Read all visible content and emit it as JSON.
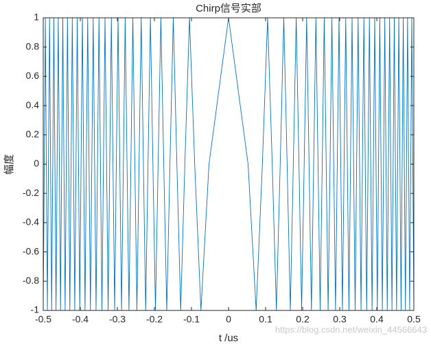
{
  "chart_data": {
    "type": "line",
    "title": "Chirp信号实部",
    "xlabel": "t /us",
    "ylabel": "幅度",
    "watermark": "https://blog.csdn.net/weixin_44566643",
    "color": "#0072bd",
    "xlim": [
      -0.5,
      0.5
    ],
    "xticks": [
      -0.5,
      -0.4,
      -0.3,
      -0.2,
      -0.1,
      0,
      0.1,
      0.2,
      0.3,
      0.4,
      0.5
    ],
    "ylim": [
      -1,
      1
    ],
    "yticks": [
      -1,
      -0.8,
      -0.6,
      -0.4,
      -0.2,
      0,
      0.2,
      0.4,
      0.6,
      0.8,
      1
    ],
    "x": [
      -0.5,
      -0.4972,
      -0.4944,
      -0.4916,
      -0.4888,
      -0.4859,
      -0.483,
      -0.4802,
      -0.4773,
      -0.4743,
      -0.4714,
      -0.4685,
      -0.4655,
      -0.4625,
      -0.4595,
      -0.4564,
      -0.4534,
      -0.4503,
      -0.4472,
      -0.4441,
      -0.441,
      -0.4378,
      -0.4346,
      -0.4314,
      -0.4282,
      -0.4249,
      -0.4216,
      -0.4183,
      -0.415,
      -0.4116,
      -0.4082,
      -0.4048,
      -0.4014,
      -0.3979,
      -0.3944,
      -0.3909,
      -0.3873,
      -0.3837,
      -0.3801,
      -0.3764,
      -0.3727,
      -0.3689,
      -0.3652,
      -0.3613,
      -0.3575,
      -0.3536,
      -0.3496,
      -0.3456,
      -0.3416,
      -0.3375,
      -0.3333,
      -0.3291,
      -0.3249,
      -0.3206,
      -0.3162,
      -0.3118,
      -0.3073,
      -0.3028,
      -0.2981,
      -0.2934,
      -0.2887,
      -0.2838,
      -0.2789,
      -0.2739,
      -0.2687,
      -0.2635,
      -0.2582,
      -0.2528,
      -0.2472,
      -0.2415,
      -0.2357,
      -0.2297,
      -0.2236,
      -0.2173,
      -0.2108,
      -0.2041,
      -0.1972,
      -0.19,
      -0.1826,
      -0.1748,
      -0.1667,
      -0.1581,
      -0.1491,
      -0.1394,
      -0.1291,
      -0.1179,
      -0.1054,
      -0.0913,
      -0.0745,
      -0.0527,
      0,
      0.0527,
      0.0745,
      0.0913,
      0.1054,
      0.1179,
      0.1291,
      0.1394,
      0.1491,
      0.1581,
      0.1667,
      0.1748,
      0.1826,
      0.19,
      0.1972,
      0.2041,
      0.2108,
      0.2173,
      0.2236,
      0.2297,
      0.2357,
      0.2415,
      0.2472,
      0.2528,
      0.2582,
      0.2635,
      0.2687,
      0.2739,
      0.2789,
      0.2838,
      0.2887,
      0.2934,
      0.2981,
      0.3028,
      0.3073,
      0.3118,
      0.3162,
      0.3206,
      0.3249,
      0.3291,
      0.3333,
      0.3375,
      0.3416,
      0.3456,
      0.3496,
      0.3536,
      0.3575,
      0.3613,
      0.3652,
      0.3689,
      0.3727,
      0.3764,
      0.3801,
      0.3837,
      0.3873,
      0.3909,
      0.3944,
      0.3979,
      0.4014,
      0.4048,
      0.4082,
      0.4116,
      0.415,
      0.4183,
      0.4216,
      0.4249,
      0.4282,
      0.4314,
      0.4346,
      0.4378,
      0.441,
      0.4441,
      0.4472,
      0.4503,
      0.4534,
      0.4564,
      0.4595,
      0.4625,
      0.4655,
      0.4685,
      0.4714,
      0.4743,
      0.4773,
      0.4802,
      0.483,
      0.4859,
      0.4888,
      0.4916,
      0.4944,
      0.4972,
      0.5
    ],
    "values": [
      -1,
      0,
      1,
      0,
      -1,
      0,
      1,
      0,
      -1,
      0,
      1,
      0,
      -1,
      0,
      1,
      0,
      -1,
      0,
      1,
      0,
      -1,
      0,
      1,
      0,
      -1,
      0,
      1,
      0,
      -1,
      0,
      1,
      0,
      -1,
      0,
      1,
      0,
      -1,
      0,
      1,
      0,
      -1,
      0,
      1,
      0,
      -1,
      0,
      1,
      0,
      -1,
      0,
      1,
      0,
      -1,
      0,
      1,
      0,
      -1,
      0,
      1,
      0,
      -1,
      0,
      1,
      0,
      -1,
      0,
      1,
      0,
      -1,
      0,
      1,
      0,
      -1,
      0,
      1,
      0,
      -1,
      0,
      1,
      0,
      -1,
      0,
      1,
      0,
      -1,
      0,
      1,
      0,
      -1,
      0,
      1,
      0,
      -1,
      0,
      1,
      0,
      -1,
      0,
      1,
      0,
      -1,
      0,
      1,
      0,
      -1,
      0,
      1,
      0,
      -1,
      0,
      1,
      0,
      -1,
      0,
      1,
      0,
      -1,
      0,
      1,
      0,
      -1,
      0,
      1,
      0,
      -1,
      0,
      1,
      0,
      -1,
      0,
      1,
      0,
      -1,
      0,
      1,
      0,
      -1,
      0,
      1,
      0,
      -1,
      0,
      1,
      0,
      -1,
      0,
      1,
      0,
      -1,
      0,
      1,
      0,
      -1,
      0,
      1,
      0,
      -1,
      0,
      1,
      0,
      -1,
      0,
      1,
      0,
      -1,
      0,
      1,
      0,
      -1,
      0,
      1,
      0,
      -1,
      0,
      1,
      0,
      -1,
      0,
      1,
      0,
      -1
    ]
  }
}
